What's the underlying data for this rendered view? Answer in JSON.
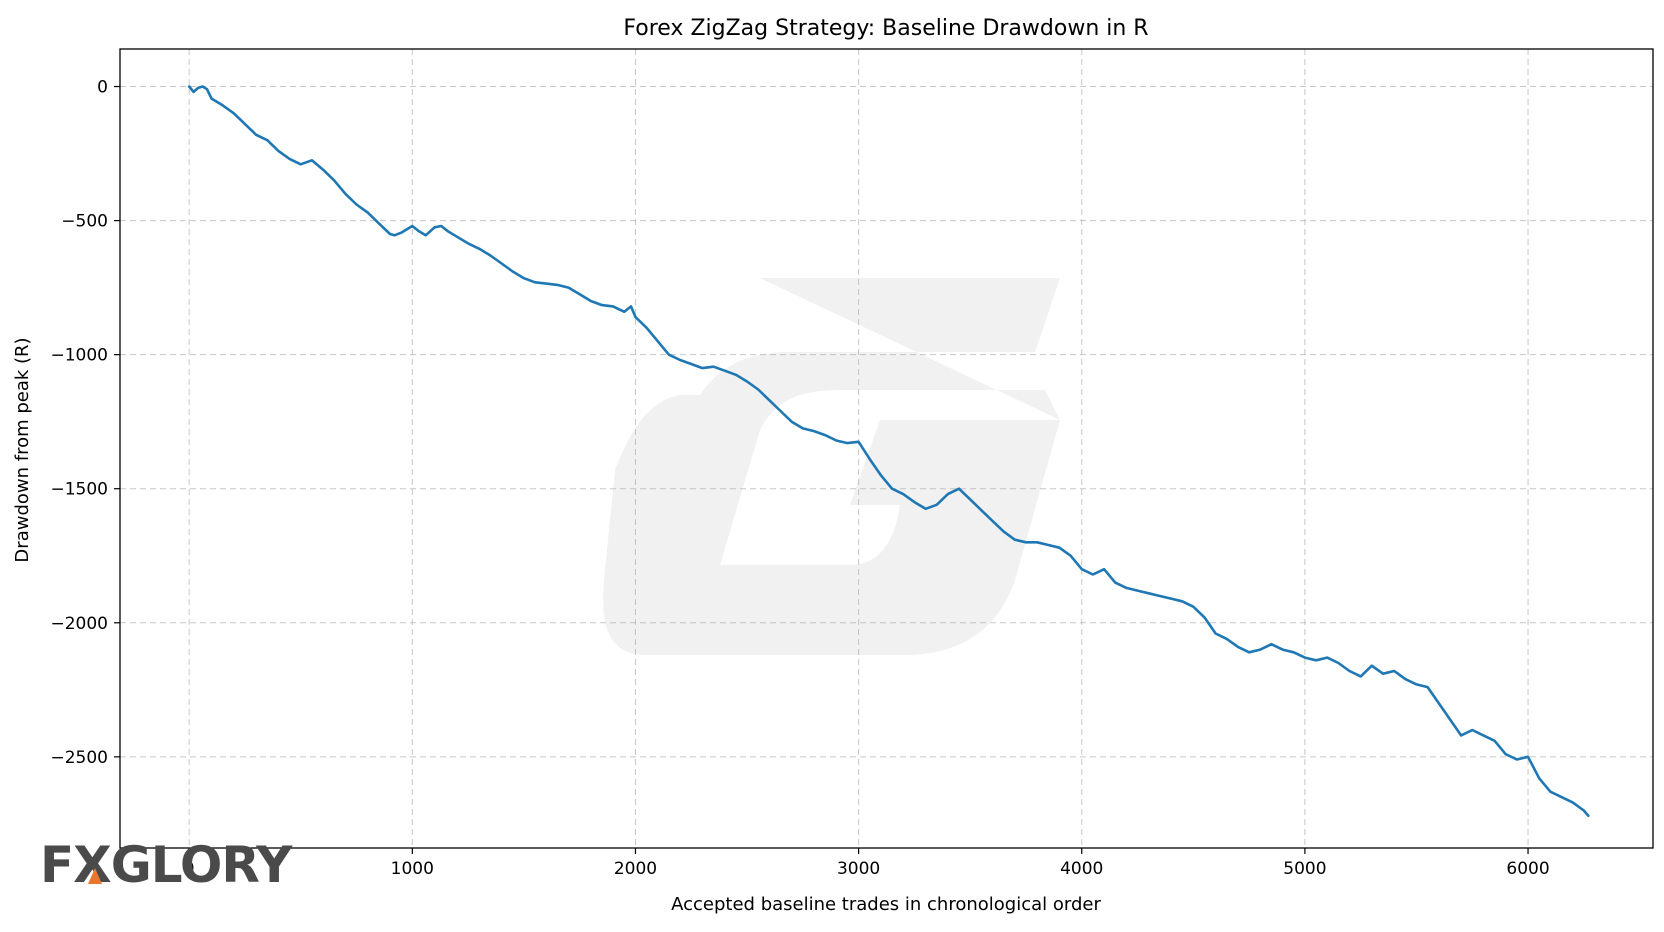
{
  "chart_data": {
    "type": "line",
    "title": "Forex ZigZag Strategy: Baseline Drawdown in R",
    "xlabel": "Accepted baseline trades in chronological order",
    "ylabel": "Drawdown from peak (R)",
    "xlim": [
      -310,
      6560
    ],
    "ylim": [
      -2840,
      140
    ],
    "x_ticks": [
      0,
      1000,
      2000,
      3000,
      4000,
      5000,
      6000
    ],
    "x_tick_labels": [
      "0",
      "1000",
      "2000",
      "3000",
      "4000",
      "5000",
      "6000"
    ],
    "y_ticks": [
      0,
      -500,
      -1000,
      -1500,
      -2000,
      -2500
    ],
    "y_tick_labels": [
      "0",
      "−500",
      "−1000",
      "−1500",
      "−2000",
      "−2500"
    ],
    "grid": true,
    "legend": "none",
    "series": [
      {
        "color": "#1f77b4",
        "x": [
          0,
          20,
          40,
          60,
          80,
          100,
          150,
          200,
          250,
          300,
          350,
          400,
          450,
          500,
          550,
          600,
          650,
          700,
          750,
          800,
          850,
          900,
          920,
          950,
          1000,
          1030,
          1060,
          1100,
          1130,
          1160,
          1200,
          1250,
          1300,
          1350,
          1400,
          1450,
          1500,
          1550,
          1600,
          1650,
          1700,
          1750,
          1800,
          1850,
          1900,
          1950,
          1980,
          2000,
          2050,
          2100,
          2150,
          2200,
          2250,
          2300,
          2350,
          2400,
          2450,
          2500,
          2550,
          2600,
          2650,
          2700,
          2750,
          2800,
          2850,
          2900,
          2950,
          3000,
          3050,
          3100,
          3150,
          3200,
          3250,
          3300,
          3350,
          3400,
          3450,
          3500,
          3550,
          3600,
          3650,
          3700,
          3750,
          3800,
          3850,
          3900,
          3950,
          4000,
          4050,
          4100,
          4150,
          4200,
          4250,
          4300,
          4350,
          4400,
          4450,
          4500,
          4550,
          4600,
          4650,
          4700,
          4750,
          4800,
          4850,
          4900,
          4950,
          5000,
          5050,
          5100,
          5150,
          5200,
          5250,
          5300,
          5350,
          5400,
          5450,
          5500,
          5550,
          5600,
          5650,
          5700,
          5750,
          5800,
          5850,
          5900,
          5950,
          6000,
          6050,
          6100,
          6150,
          6200,
          6250,
          6270
        ],
        "y": [
          0,
          -20,
          -5,
          0,
          -10,
          -45,
          -70,
          -100,
          -140,
          -180,
          -200,
          -240,
          -270,
          -290,
          -275,
          -310,
          -350,
          -400,
          -440,
          -470,
          -510,
          -550,
          -555,
          -545,
          -520,
          -540,
          -555,
          -525,
          -520,
          -540,
          -560,
          -585,
          -605,
          -630,
          -660,
          -690,
          -715,
          -730,
          -735,
          -740,
          -750,
          -775,
          -800,
          -815,
          -820,
          -840,
          -820,
          -860,
          -900,
          -950,
          -1000,
          -1020,
          -1035,
          -1050,
          -1045,
          -1060,
          -1075,
          -1100,
          -1130,
          -1170,
          -1210,
          -1250,
          -1275,
          -1285,
          -1300,
          -1320,
          -1330,
          -1325,
          -1390,
          -1450,
          -1500,
          -1520,
          -1550,
          -1575,
          -1560,
          -1520,
          -1500,
          -1540,
          -1580,
          -1620,
          -1660,
          -1690,
          -1700,
          -1700,
          -1710,
          -1720,
          -1750,
          -1800,
          -1820,
          -1800,
          -1850,
          -1870,
          -1880,
          -1890,
          -1900,
          -1910,
          -1920,
          -1940,
          -1980,
          -2040,
          -2060,
          -2090,
          -2110,
          -2100,
          -2080,
          -2100,
          -2110,
          -2130,
          -2140,
          -2130,
          -2150,
          -2180,
          -2200,
          -2160,
          -2190,
          -2180,
          -2210,
          -2230,
          -2240,
          -2300,
          -2360,
          -2420,
          -2400,
          -2420,
          -2440,
          -2490,
          -2510,
          -2500,
          -2580,
          -2630,
          -2650,
          -2670,
          -2700,
          -2720
        ]
      }
    ]
  },
  "brand": {
    "logo_text": "FXGLORY"
  }
}
